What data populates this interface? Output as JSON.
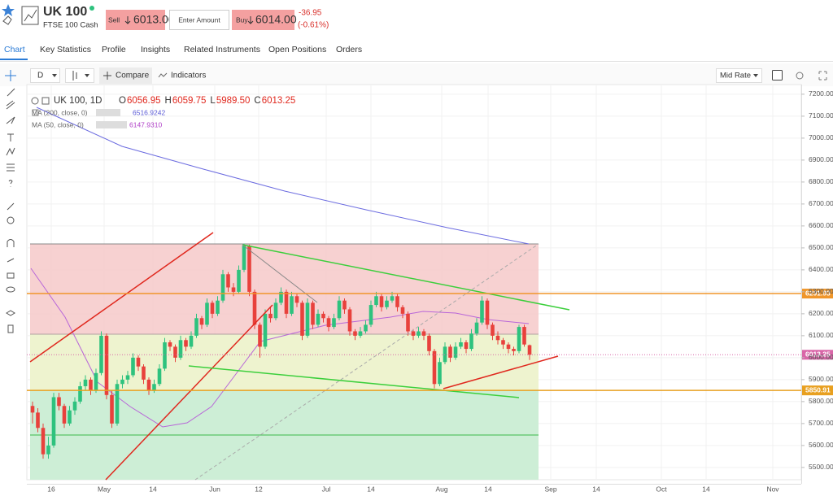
{
  "header": {
    "symbol": "UK 100",
    "subtitle": "FTSE 100 Cash",
    "sell_label": "Sell",
    "sell_price": "6013.00",
    "amount_placeholder": "Enter Amount",
    "buy_label": "Buy",
    "buy_price": "6014.00",
    "change": "-36.95",
    "change_pct": "(-0.61%)"
  },
  "tabs": [
    "Chart",
    "Key Statistics",
    "Profile",
    "Insights",
    "Related Instruments",
    "Open Positions",
    "Orders"
  ],
  "toolbar": {
    "interval": "D",
    "compare": "Compare",
    "indicators": "Indicators",
    "rate": "Mid Rate"
  },
  "legend": {
    "title": "UK 100, 1D",
    "ohlc": [
      {
        "key": "O",
        "value": "6056.95"
      },
      {
        "key": "H",
        "value": "6059.75"
      },
      {
        "key": "L",
        "value": "5989.50"
      },
      {
        "key": "C",
        "value": "6013.25"
      }
    ],
    "studies": [
      {
        "name": "MA (200, close, 0)",
        "value": "6516.9242",
        "color": "#5a5ad6"
      },
      {
        "name": "MA (50, close, 0)",
        "value": "6147.9310",
        "color": "#b040c8"
      }
    ]
  },
  "chart_data": {
    "type": "candlestick",
    "up_color": "#2ec27e",
    "down_color": "#e8413c",
    "grid": true,
    "ylim": [
      5444,
      7244
    ],
    "yticks": [
      {
        "value": 5500,
        "label": "5500.00"
      },
      {
        "value": 5600,
        "label": "5600.00"
      },
      {
        "value": 5700,
        "label": "5700.00"
      },
      {
        "value": 5800,
        "label": "5800.00"
      },
      {
        "value": 5900,
        "label": "5900.00"
      },
      {
        "value": 6000,
        "label": "6000.00"
      },
      {
        "value": 6100,
        "label": "6100.00"
      },
      {
        "value": 6200,
        "label": "6200.00"
      },
      {
        "value": 6300,
        "label": "6300.00"
      },
      {
        "value": 6400,
        "label": "6400.00"
      },
      {
        "value": 6500,
        "label": "6500.00"
      },
      {
        "value": 6600,
        "label": "6600.00"
      },
      {
        "value": 6700,
        "label": "6700.00"
      },
      {
        "value": 6800,
        "label": "6800.00"
      },
      {
        "value": 6900,
        "label": "6900.00"
      },
      {
        "value": 7000,
        "label": "7000.00"
      },
      {
        "value": 7100,
        "label": "7100.00"
      },
      {
        "value": 7200,
        "label": "7200.00"
      }
    ],
    "x_labels": [
      "16",
      "May",
      "14",
      "Jun",
      "12",
      "Jul",
      "14",
      "Aug",
      "14",
      "Sep",
      "14",
      "Oct",
      "14",
      "Nov"
    ],
    "price_lines": [
      {
        "value": 6291.93,
        "color": "#f0962a"
      },
      {
        "value": 5850.91,
        "color": "#e8a020"
      },
      {
        "value": 6013.25,
        "color": "#d966a8"
      }
    ],
    "candles": [
      [
        5780,
        5800,
        5700,
        5750
      ],
      [
        5750,
        5770,
        5660,
        5680
      ],
      [
        5680,
        5700,
        5540,
        5560
      ],
      [
        5560,
        5640,
        5540,
        5600
      ],
      [
        5600,
        5840,
        5590,
        5820
      ],
      [
        5820,
        5840,
        5760,
        5780
      ],
      [
        5780,
        5790,
        5680,
        5700
      ],
      [
        5700,
        5780,
        5690,
        5760
      ],
      [
        5760,
        5820,
        5740,
        5800
      ],
      [
        5800,
        5890,
        5790,
        5870
      ],
      [
        5870,
        5920,
        5850,
        5900
      ],
      [
        5900,
        5910,
        5830,
        5850
      ],
      [
        5850,
        5950,
        5840,
        5930
      ],
      [
        5930,
        6120,
        5920,
        6100
      ],
      [
        6100,
        6110,
        5810,
        5830
      ],
      [
        5830,
        5850,
        5680,
        5700
      ],
      [
        5700,
        5900,
        5690,
        5880
      ],
      [
        5880,
        5920,
        5860,
        5900
      ],
      [
        5900,
        5940,
        5880,
        5920
      ],
      [
        5920,
        6020,
        5910,
        6000
      ],
      [
        6000,
        6010,
        5940,
        5960
      ],
      [
        5960,
        5970,
        5880,
        5900
      ],
      [
        5900,
        5910,
        5830,
        5850
      ],
      [
        5850,
        5900,
        5840,
        5880
      ],
      [
        5880,
        5970,
        5870,
        5950
      ],
      [
        5950,
        6090,
        5940,
        6070
      ],
      [
        6070,
        6080,
        6030,
        6050
      ],
      [
        6050,
        6060,
        5980,
        6000
      ],
      [
        6000,
        6100,
        5990,
        6080
      ],
      [
        6080,
        6090,
        6030,
        6050
      ],
      [
        6050,
        6120,
        6040,
        6100
      ],
      [
        6100,
        6200,
        6090,
        6180
      ],
      [
        6180,
        6190,
        6130,
        6150
      ],
      [
        6150,
        6270,
        6140,
        6250
      ],
      [
        6250,
        6260,
        6180,
        6200
      ],
      [
        6200,
        6280,
        6190,
        6260
      ],
      [
        6260,
        6400,
        6250,
        6380
      ],
      [
        6380,
        6390,
        6300,
        6320
      ],
      [
        6320,
        6340,
        6280,
        6300
      ],
      [
        6300,
        6420,
        6290,
        6400
      ],
      [
        6400,
        6520,
        6390,
        6510
      ],
      [
        6510,
        6515,
        6280,
        6300
      ],
      [
        6300,
        6310,
        6130,
        6150
      ],
      [
        6150,
        6160,
        6000,
        6050
      ],
      [
        6050,
        6220,
        6040,
        6200
      ],
      [
        6200,
        6230,
        6160,
        6180
      ],
      [
        6180,
        6270,
        6170,
        6250
      ],
      [
        6250,
        6320,
        6240,
        6300
      ],
      [
        6300,
        6310,
        6180,
        6200
      ],
      [
        6200,
        6300,
        6190,
        6280
      ],
      [
        6280,
        6290,
        6230,
        6250
      ],
      [
        6250,
        6260,
        6080,
        6100
      ],
      [
        6100,
        6270,
        6090,
        6250
      ],
      [
        6250,
        6260,
        6130,
        6150
      ],
      [
        6150,
        6220,
        6140,
        6200
      ],
      [
        6200,
        6210,
        6160,
        6180
      ],
      [
        6180,
        6190,
        6120,
        6140
      ],
      [
        6140,
        6200,
        6130,
        6180
      ],
      [
        6180,
        6280,
        6170,
        6260
      ],
      [
        6260,
        6270,
        6200,
        6220
      ],
      [
        6220,
        6230,
        6100,
        6120
      ],
      [
        6120,
        6130,
        6080,
        6100
      ],
      [
        6100,
        6140,
        6090,
        6120
      ],
      [
        6120,
        6170,
        6110,
        6150
      ],
      [
        6150,
        6260,
        6140,
        6240
      ],
      [
        6240,
        6300,
        6230,
        6280
      ],
      [
        6280,
        6290,
        6210,
        6230
      ],
      [
        6230,
        6280,
        6220,
        6260
      ],
      [
        6260,
        6300,
        6250,
        6280
      ],
      [
        6280,
        6290,
        6210,
        6230
      ],
      [
        6230,
        6240,
        6180,
        6200
      ],
      [
        6200,
        6210,
        6100,
        6120
      ],
      [
        6120,
        6130,
        6080,
        6100
      ],
      [
        6100,
        6140,
        6090,
        6120
      ],
      [
        6120,
        6130,
        6080,
        6100
      ],
      [
        6100,
        6110,
        6010,
        6030
      ],
      [
        6030,
        6040,
        5860,
        5880
      ],
      [
        5880,
        6000,
        5870,
        5980
      ],
      [
        5980,
        6070,
        5970,
        6050
      ],
      [
        6050,
        6060,
        5980,
        6000
      ],
      [
        6000,
        6070,
        5990,
        6050
      ],
      [
        6050,
        6090,
        6040,
        6070
      ],
      [
        6070,
        6080,
        6020,
        6040
      ],
      [
        6040,
        6130,
        6030,
        6110
      ],
      [
        6110,
        6180,
        6100,
        6160
      ],
      [
        6160,
        6280,
        6150,
        6260
      ],
      [
        6260,
        6270,
        6130,
        6150
      ],
      [
        6150,
        6160,
        6080,
        6100
      ],
      [
        6100,
        6120,
        6060,
        6080
      ],
      [
        6080,
        6090,
        6040,
        6060
      ],
      [
        6060,
        6070,
        6020,
        6040
      ],
      [
        6040,
        6050,
        6010,
        6030
      ],
      [
        6030,
        6150,
        6020,
        6140
      ],
      [
        6140,
        6150,
        6050,
        6060
      ],
      [
        6056.95,
        6059.75,
        5989.5,
        6013.25
      ]
    ]
  }
}
